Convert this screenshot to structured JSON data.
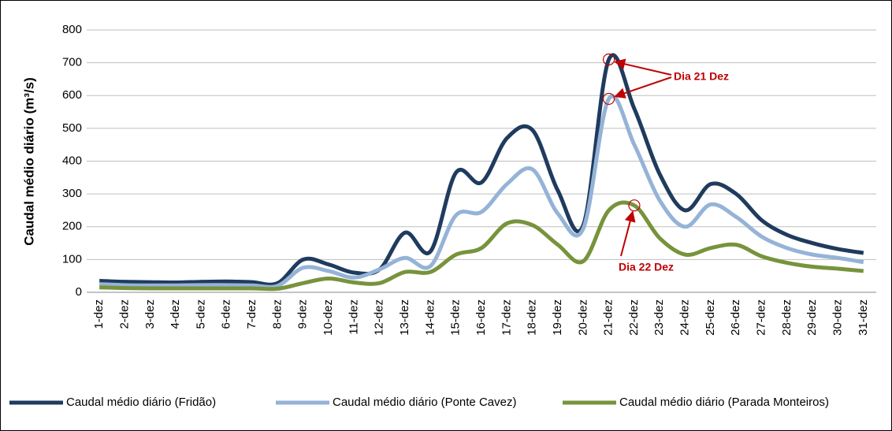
{
  "chart_data": {
    "type": "line",
    "ylabel": "Caudal médio diário (m³/s)",
    "categories": [
      "1-dez",
      "2-dez",
      "3-dez",
      "4-dez",
      "5-dez",
      "6-dez",
      "7-dez",
      "8-dez",
      "9-dez",
      "10-dez",
      "11-dez",
      "12-dez",
      "13-dez",
      "14-dez",
      "15-dez",
      "16-dez",
      "17-dez",
      "18-dez",
      "19-dez",
      "20-dez",
      "21-dez",
      "22-dez",
      "23-dez",
      "24-dez",
      "25-dez",
      "26-dez",
      "27-dez",
      "28-dez",
      "29-dez",
      "30-dez",
      "31-dez"
    ],
    "series": [
      {
        "name": "Caudal médio diário (Fridão)",
        "color": "#1f3b5e",
        "values": [
          35,
          32,
          31,
          30,
          32,
          33,
          31,
          28,
          100,
          85,
          60,
          70,
          182,
          125,
          365,
          335,
          470,
          495,
          310,
          205,
          710,
          560,
          360,
          250,
          330,
          300,
          220,
          175,
          150,
          132,
          120
        ]
      },
      {
        "name": "Caudal médio diário (Ponte Cavez)",
        "color": "#95b3d7",
        "values": [
          25,
          22,
          21,
          21,
          22,
          22,
          21,
          20,
          75,
          65,
          45,
          70,
          105,
          80,
          235,
          245,
          330,
          375,
          240,
          195,
          590,
          450,
          280,
          200,
          268,
          230,
          170,
          135,
          115,
          105,
          92
        ]
      },
      {
        "name": "Caudal médio diário (Parada Monteiros)",
        "color": "#77933c",
        "values": [
          15,
          13,
          12,
          12,
          12,
          12,
          12,
          11,
          28,
          42,
          30,
          28,
          62,
          62,
          115,
          135,
          210,
          205,
          145,
          95,
          250,
          265,
          165,
          115,
          135,
          145,
          110,
          90,
          78,
          72,
          65
        ]
      }
    ],
    "annotations": [
      "Dia 21 Dez",
      "Dia 22 Dez"
    ],
    "ylim": [
      0,
      800
    ],
    "yticks": [
      0,
      100,
      200,
      300,
      400,
      500,
      600,
      700,
      800
    ],
    "grid": true,
    "legend": "bottom"
  }
}
